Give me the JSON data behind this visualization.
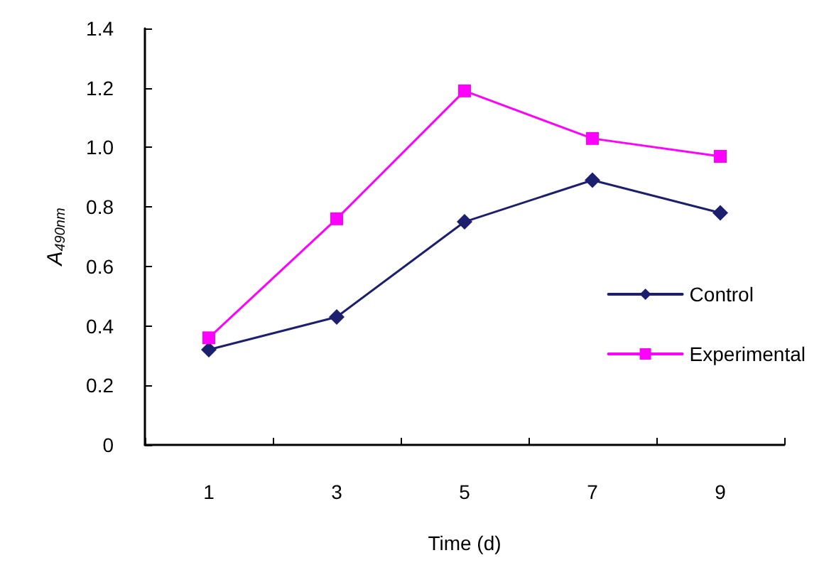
{
  "chart_data": {
    "type": "line",
    "xlabel": "Time (d)",
    "ylabel": "A$_{490nm}$",
    "categories": [
      "1",
      "3",
      "5",
      "7",
      "9"
    ],
    "series": [
      {
        "name": "Control",
        "color": "#1c1f6e",
        "marker": "diamond",
        "values": [
          0.32,
          0.43,
          0.75,
          0.89,
          0.78
        ]
      },
      {
        "name": "Experimental",
        "color": "#ff00ff",
        "marker": "square",
        "values": [
          0.36,
          0.76,
          1.19,
          1.03,
          0.97
        ]
      }
    ],
    "ylim": [
      0,
      1.4
    ],
    "yticks": [
      0,
      0.2,
      0.4,
      0.6,
      0.8,
      {
        "value": 1,
        "label": "1.0"
      },
      1.2,
      1.4
    ],
    "grid": false,
    "legend": "right",
    "line_style": "solid"
  }
}
